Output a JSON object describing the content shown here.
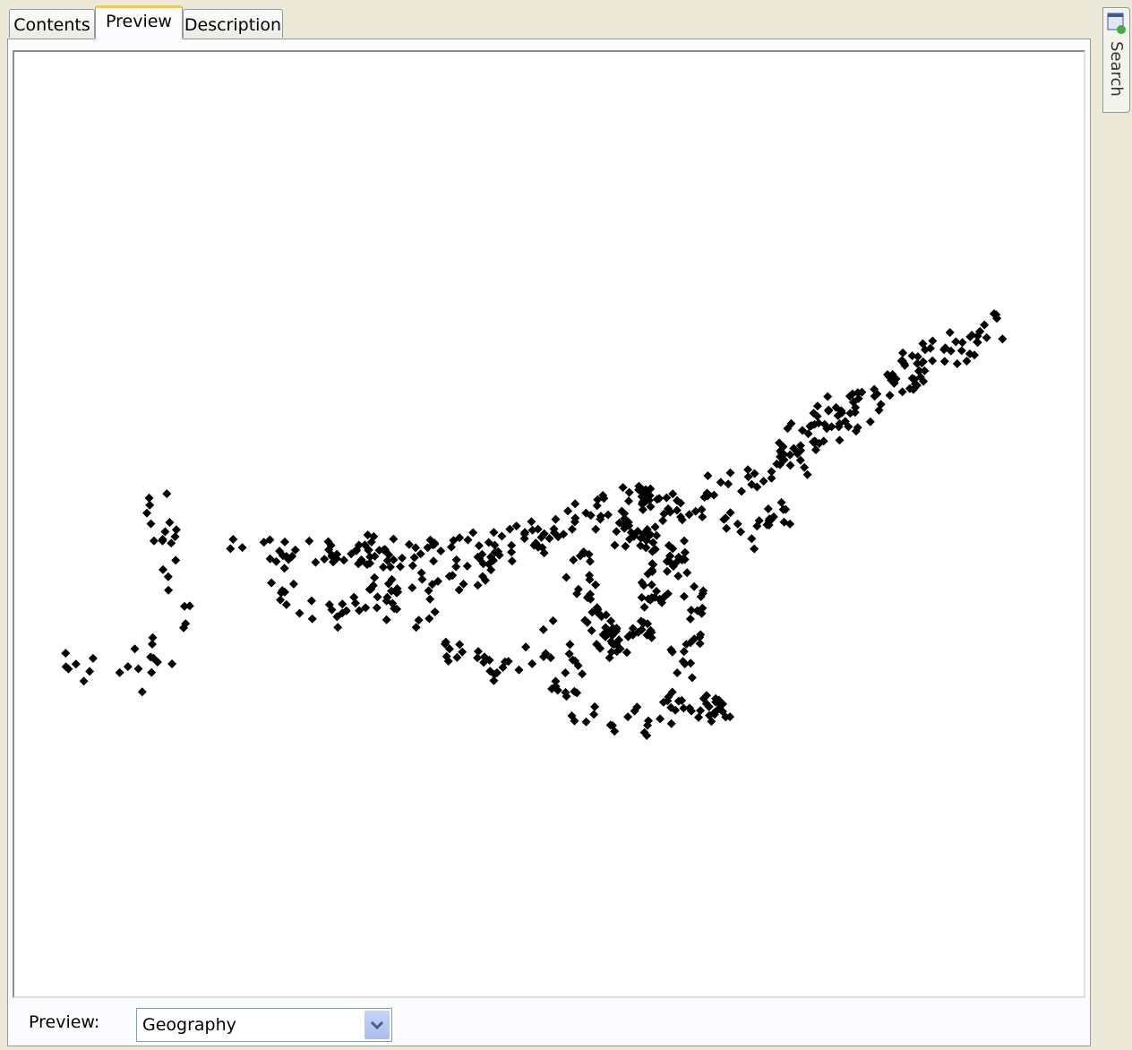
{
  "tabs": [
    "Contents",
    "Preview",
    "Description"
  ],
  "side_tab": "Search",
  "footer": {
    "label": "Preview:",
    "dropdown": "Geography"
  }
}
